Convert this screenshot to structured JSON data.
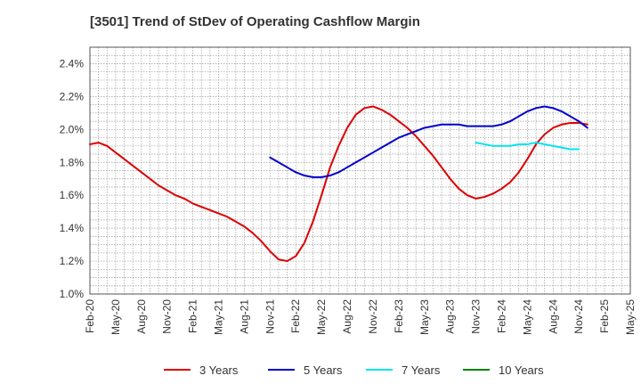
{
  "chart_data": {
    "type": "line",
    "title": "[3501]  Trend of StDev of Operating Cashflow Margin",
    "xlabel": "",
    "ylabel": "",
    "ylim": [
      1.0,
      2.5
    ],
    "y_ticks": [
      "1.0%",
      "1.2%",
      "1.4%",
      "1.6%",
      "1.8%",
      "2.0%",
      "2.2%",
      "2.4%"
    ],
    "y_tick_values": [
      1.0,
      1.2,
      1.4,
      1.6,
      1.8,
      2.0,
      2.2,
      2.4
    ],
    "x_ticks": [
      "Feb-20",
      "May-20",
      "Aug-20",
      "Nov-20",
      "Feb-21",
      "May-21",
      "Aug-21",
      "Nov-21",
      "Feb-22",
      "May-22",
      "Aug-22",
      "Nov-22",
      "Feb-23",
      "May-23",
      "Aug-23",
      "Nov-23",
      "Feb-24",
      "May-24",
      "Aug-24",
      "Nov-24",
      "Feb-25",
      "May-25"
    ],
    "x_start": "Feb-20",
    "x_end": "May-25",
    "grid": true,
    "legend_position": "bottom",
    "series": [
      {
        "name": "3 Years",
        "color": "#dd0000",
        "points": [
          [
            "Feb-20",
            1.91
          ],
          [
            "Mar-20",
            1.92
          ],
          [
            "Apr-20",
            1.9
          ],
          [
            "May-20",
            1.86
          ],
          [
            "Jun-20",
            1.82
          ],
          [
            "Jul-20",
            1.78
          ],
          [
            "Aug-20",
            1.74
          ],
          [
            "Sep-20",
            1.7
          ],
          [
            "Oct-20",
            1.66
          ],
          [
            "Nov-20",
            1.63
          ],
          [
            "Dec-20",
            1.6
          ],
          [
            "Jan-21",
            1.58
          ],
          [
            "Feb-21",
            1.55
          ],
          [
            "Mar-21",
            1.53
          ],
          [
            "Apr-21",
            1.51
          ],
          [
            "May-21",
            1.49
          ],
          [
            "Jun-21",
            1.47
          ],
          [
            "Jul-21",
            1.44
          ],
          [
            "Aug-21",
            1.41
          ],
          [
            "Sep-21",
            1.37
          ],
          [
            "Oct-21",
            1.32
          ],
          [
            "Nov-21",
            1.26
          ],
          [
            "Dec-21",
            1.21
          ],
          [
            "Jan-22",
            1.2
          ],
          [
            "Feb-22",
            1.23
          ],
          [
            "Mar-22",
            1.31
          ],
          [
            "Apr-22",
            1.44
          ],
          [
            "May-22",
            1.6
          ],
          [
            "Jun-22",
            1.77
          ],
          [
            "Jul-22",
            1.9
          ],
          [
            "Aug-22",
            2.01
          ],
          [
            "Sep-22",
            2.09
          ],
          [
            "Oct-22",
            2.13
          ],
          [
            "Nov-22",
            2.14
          ],
          [
            "Dec-22",
            2.12
          ],
          [
            "Jan-23",
            2.09
          ],
          [
            "Feb-23",
            2.05
          ],
          [
            "Mar-23",
            2.01
          ],
          [
            "Apr-23",
            1.96
          ],
          [
            "May-23",
            1.9
          ],
          [
            "Jun-23",
            1.84
          ],
          [
            "Jul-23",
            1.77
          ],
          [
            "Aug-23",
            1.7
          ],
          [
            "Sep-23",
            1.64
          ],
          [
            "Oct-23",
            1.6
          ],
          [
            "Nov-23",
            1.58
          ],
          [
            "Dec-23",
            1.59
          ],
          [
            "Jan-24",
            1.61
          ],
          [
            "Feb-24",
            1.64
          ],
          [
            "Mar-24",
            1.68
          ],
          [
            "Apr-24",
            1.74
          ],
          [
            "May-24",
            1.82
          ],
          [
            "Jun-24",
            1.91
          ],
          [
            "Jul-24",
            1.97
          ],
          [
            "Aug-24",
            2.01
          ],
          [
            "Sep-24",
            2.03
          ],
          [
            "Oct-24",
            2.04
          ],
          [
            "Nov-24",
            2.04
          ],
          [
            "Dec-24",
            2.03
          ]
        ]
      },
      {
        "name": "5 Years",
        "color": "#0000cc",
        "points": [
          [
            "Nov-21",
            1.83
          ],
          [
            "Dec-21",
            1.8
          ],
          [
            "Jan-22",
            1.77
          ],
          [
            "Feb-22",
            1.74
          ],
          [
            "Mar-22",
            1.72
          ],
          [
            "Apr-22",
            1.71
          ],
          [
            "May-22",
            1.71
          ],
          [
            "Jun-22",
            1.72
          ],
          [
            "Jul-22",
            1.74
          ],
          [
            "Aug-22",
            1.77
          ],
          [
            "Sep-22",
            1.8
          ],
          [
            "Oct-22",
            1.83
          ],
          [
            "Nov-22",
            1.86
          ],
          [
            "Dec-22",
            1.89
          ],
          [
            "Jan-23",
            1.92
          ],
          [
            "Feb-23",
            1.95
          ],
          [
            "Mar-23",
            1.97
          ],
          [
            "Apr-23",
            1.99
          ],
          [
            "May-23",
            2.01
          ],
          [
            "Jun-23",
            2.02
          ],
          [
            "Jul-23",
            2.03
          ],
          [
            "Aug-23",
            2.03
          ],
          [
            "Sep-23",
            2.03
          ],
          [
            "Oct-23",
            2.02
          ],
          [
            "Nov-23",
            2.02
          ],
          [
            "Dec-23",
            2.02
          ],
          [
            "Jan-24",
            2.02
          ],
          [
            "Feb-24",
            2.03
          ],
          [
            "Mar-24",
            2.05
          ],
          [
            "Apr-24",
            2.08
          ],
          [
            "May-24",
            2.11
          ],
          [
            "Jun-24",
            2.13
          ],
          [
            "Jul-24",
            2.14
          ],
          [
            "Aug-24",
            2.13
          ],
          [
            "Sep-24",
            2.11
          ],
          [
            "Oct-24",
            2.08
          ],
          [
            "Nov-24",
            2.05
          ],
          [
            "Dec-24",
            2.01
          ]
        ]
      },
      {
        "name": "7 Years",
        "color": "#00e5ee",
        "points": [
          [
            "Nov-23",
            1.92
          ],
          [
            "Dec-23",
            1.91
          ],
          [
            "Jan-24",
            1.9
          ],
          [
            "Feb-24",
            1.9
          ],
          [
            "Mar-24",
            1.9
          ],
          [
            "Apr-24",
            1.91
          ],
          [
            "May-24",
            1.91
          ],
          [
            "Jun-24",
            1.92
          ],
          [
            "Jul-24",
            1.91
          ],
          [
            "Aug-24",
            1.9
          ],
          [
            "Sep-24",
            1.89
          ],
          [
            "Oct-24",
            1.88
          ],
          [
            "Nov-24",
            1.88
          ]
        ]
      },
      {
        "name": "10 Years",
        "color": "#008000",
        "points": []
      }
    ]
  }
}
